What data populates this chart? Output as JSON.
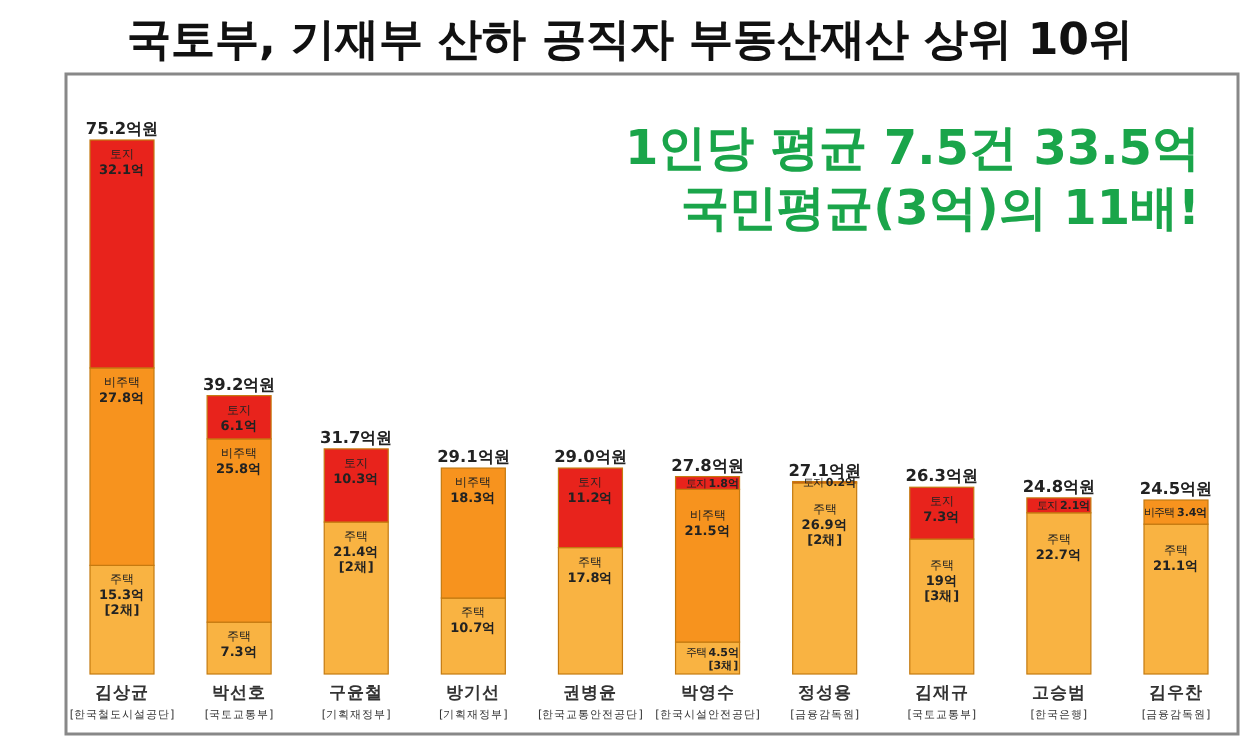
{
  "chart_data": {
    "type": "bar",
    "stacked": true,
    "title": "국토부, 기재부 산하 공직자 부동산재산 상위 10위",
    "annotations": [
      "1인당 평균 7.5건 33.5억",
      "국민평균(3억)의 11배!"
    ],
    "categories": [
      "김상균\n$_{[한국철도시설공단]}$",
      "박선호\n$_{[국토교통부]}$",
      "구윤철\n$_{[기획재정부]}$",
      "방기선\n$_{[기획재정부]}$",
      "권병윤\n$_{[한국교통안전공단]}$",
      "박영수\n$_{[한국시설안전공단]}$",
      "정성용\n$_{[금융감독원]}$",
      "김재규\n$_{[국토교통부]}$",
      "고승범\n$_{[한국은행]}$",
      "김우찬\n$_{[금융감독원]}$"
    ],
    "series": [
      {
        "name": "주택",
        "color": "#f9b342",
        "values": [
          15.3,
          7.3,
          21.4,
          10.7,
          17.8,
          4.5,
          26.9,
          19,
          22.7,
          21.1
        ],
        "value_labels": [
          "15.3억\n[2채]",
          "7.3억",
          "21.4억\n[2채]",
          "10.7억",
          "17.8억",
          "4.5억\n[3채]",
          "26.9억\n[2채]",
          "19억\n[3채]",
          "22.7억",
          "21.1억"
        ]
      },
      {
        "name": "비주택",
        "color": "#f7931e",
        "values": [
          27.8,
          25.8,
          null,
          18.3,
          null,
          21.5,
          null,
          null,
          null,
          3.4
        ],
        "value_labels": [
          "27.8억",
          "25.8억",
          null,
          "18.3억",
          null,
          "21.5억",
          null,
          null,
          null,
          "3.4억"
        ]
      },
      {
        "name": "토지",
        "color": "#e8231c",
        "values": [
          32.1,
          6.1,
          10.3,
          null,
          11.2,
          1.8,
          0.2,
          7.3,
          2.1,
          null
        ],
        "value_labels": [
          "32.1억",
          "6.1억",
          "10.3억",
          null,
          "11.2억",
          "1.8억",
          "0.2억",
          "7.3억",
          "2.1억",
          null
        ]
      }
    ],
    "totals": [
      "75.2억원",
      "39.2억원",
      "31.7억원",
      "29.1억원",
      "29.0억원",
      "27.8억원",
      "27.1억원",
      "26.3억원",
      "24.8억원",
      "24.5억원"
    ]
  }
}
